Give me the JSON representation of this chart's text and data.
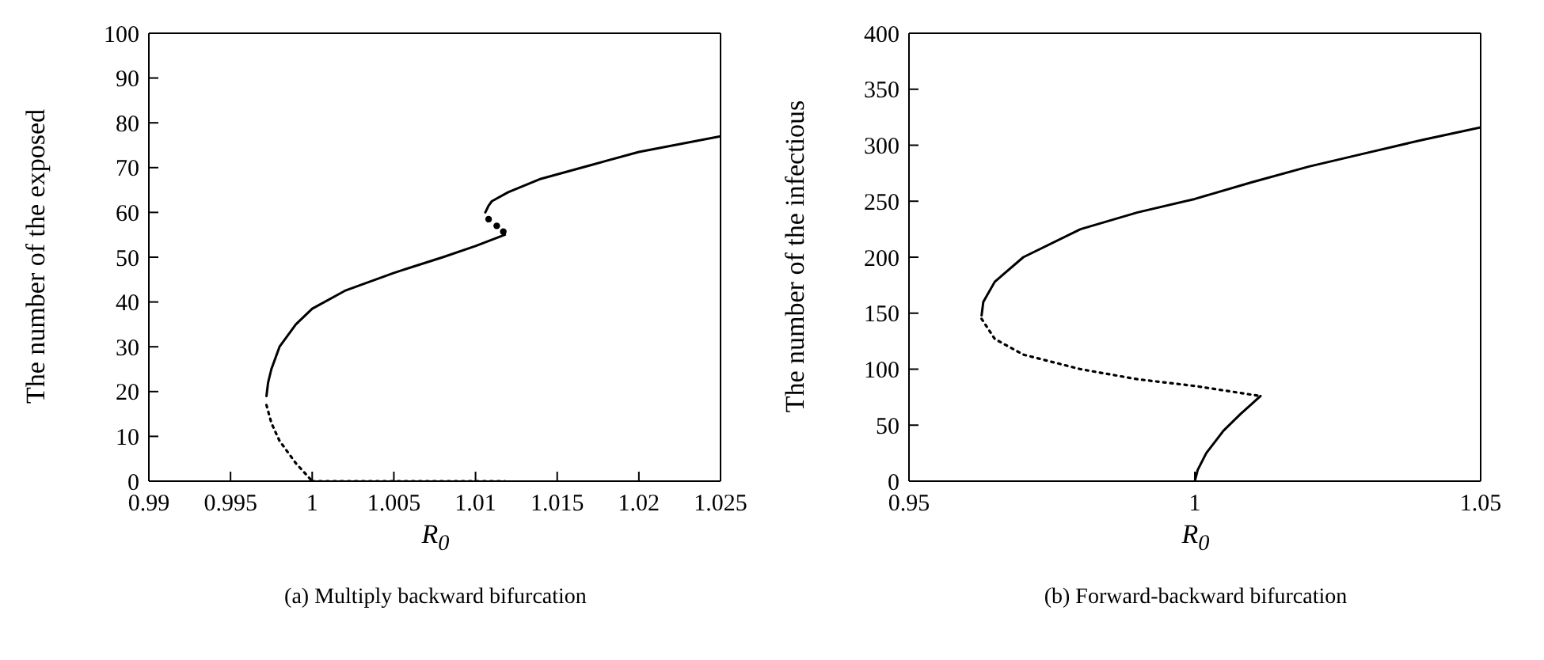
{
  "chart_data": [
    {
      "type": "line",
      "title": "(a)  Multiply backward bifurcation",
      "xlabel": "R$_{0}$",
      "ylabel": "The number of the exposed",
      "xlim": [
        0.99,
        1.025
      ],
      "xticks": [
        0.99,
        0.995,
        1,
        1.005,
        1.01,
        1.015,
        1.02,
        1.025
      ],
      "ylim": [
        0,
        100
      ],
      "yticks": [
        0,
        10,
        20,
        30,
        40,
        50,
        60,
        70,
        80,
        90,
        100
      ],
      "grid": false,
      "legend": false,
      "marker": "none",
      "series": [
        {
          "color": "#000000",
          "line_style": "solid",
          "x": [
            0.9972,
            0.9973,
            0.9975,
            0.998,
            0.999,
            1.0,
            1.002,
            1.005,
            1.008,
            1.01,
            1.0118
          ],
          "values": [
            19,
            22,
            25,
            30,
            35,
            38.5,
            42.5,
            46.5,
            50,
            52.5,
            55
          ]
        },
        {
          "color": "#000000",
          "line_style": "dotted",
          "x": [
            0.9972,
            0.9975,
            0.998,
            0.999,
            1.0
          ],
          "values": [
            17,
            13,
            9,
            4,
            0
          ]
        },
        {
          "type": "scatter",
          "marker": "circle",
          "color": "#000000",
          "x": [
            1.0108,
            1.0113,
            1.0117
          ],
          "values": [
            58.5,
            57,
            55.7
          ]
        },
        {
          "color": "#000000",
          "line_style": "dotted",
          "x": [
            1.0,
            1.006,
            1.0118
          ],
          "values": [
            0,
            0,
            0
          ]
        },
        {
          "color": "#000000",
          "line_style": "solid",
          "x": [
            1.0106,
            1.0108,
            1.011,
            1.012,
            1.014,
            1.017,
            1.02,
            1.025
          ],
          "values": [
            60,
            61.5,
            62.5,
            64.5,
            67.5,
            70.5,
            73.5,
            77
          ]
        }
      ]
    },
    {
      "type": "line",
      "title": "(b)  Forward-backward bifurcation",
      "xlabel": "R$_{0}$",
      "ylabel": "The number of the infectious",
      "xlim": [
        0.95,
        1.05
      ],
      "xticks": [
        0.95,
        1,
        1.05
      ],
      "ylim": [
        0,
        400
      ],
      "yticks": [
        0,
        50,
        100,
        150,
        200,
        250,
        300,
        350,
        400
      ],
      "grid": false,
      "legend": false,
      "marker": "none",
      "series": [
        {
          "color": "#000000",
          "line_style": "solid",
          "x": [
            0.9627,
            0.963,
            0.965,
            0.97,
            0.98,
            0.99,
            1.0,
            1.01,
            1.02,
            1.03,
            1.04,
            1.05
          ],
          "values": [
            148,
            160,
            178,
            200,
            225,
            240,
            252,
            267,
            281,
            293,
            305,
            316
          ]
        },
        {
          "color": "#000000",
          "line_style": "dotted",
          "x": [
            0.9627,
            0.965,
            0.97,
            0.98,
            0.99,
            1.0,
            1.0115
          ],
          "values": [
            145,
            127,
            113,
            100,
            91,
            85,
            76
          ]
        },
        {
          "color": "#000000",
          "line_style": "solid",
          "x": [
            1.0,
            1.0005,
            1.002,
            1.005,
            1.008,
            1.0115
          ],
          "values": [
            0,
            10,
            25,
            45,
            60,
            76
          ]
        }
      ]
    }
  ]
}
